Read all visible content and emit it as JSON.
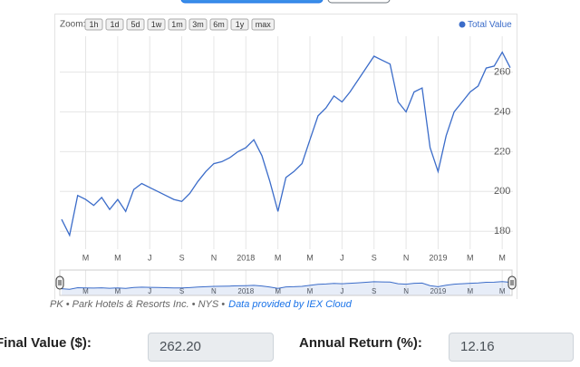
{
  "zoom": {
    "label": "Zoom:",
    "buttons": [
      "1h",
      "1d",
      "5d",
      "1w",
      "1m",
      "3m",
      "6m",
      "1y",
      "max"
    ]
  },
  "chart_data": {
    "type": "line",
    "categories": [
      null,
      null,
      null,
      "M",
      null,
      null,
      null,
      "M",
      null,
      null,
      null,
      "J",
      null,
      null,
      null,
      "S",
      null,
      null,
      null,
      "N",
      null,
      null,
      null,
      "2018",
      null,
      null,
      null,
      "M",
      null,
      null,
      null,
      "M",
      null,
      null,
      null,
      "J",
      null,
      null,
      null,
      "S",
      null,
      null,
      null,
      "N",
      null,
      null,
      null,
      "2019",
      null,
      null,
      null,
      "M",
      null,
      null,
      null,
      "M",
      null
    ],
    "series": [
      {
        "name": "Total Value",
        "color": "#3b6cc9",
        "values": [
          186,
          178,
          198,
          196,
          193,
          197,
          191,
          196,
          190,
          201,
          204,
          202,
          200,
          198,
          196,
          195,
          199,
          205,
          210,
          214,
          215,
          217,
          220,
          222,
          226,
          218,
          205,
          190,
          207,
          210,
          214,
          226,
          238,
          242,
          248,
          245,
          250,
          256,
          262,
          268,
          266,
          264,
          245,
          240,
          250,
          252,
          222,
          210,
          228,
          240,
          245,
          250,
          253,
          262,
          263,
          270,
          262.2
        ]
      }
    ],
    "ylim": [
      171,
      278
    ],
    "yticks": [
      180,
      200,
      220,
      240,
      260
    ],
    "grid": true,
    "legend": "top-right"
  },
  "caption": {
    "text": "PK • Park Hotels & Resorts Inc. • NYS •",
    "link": "Data provided by IEX Cloud"
  },
  "fields": [
    {
      "label": "Final Value ($):",
      "value": "262.20"
    },
    {
      "label": "Annual Return (%):",
      "value": "12.16"
    }
  ]
}
